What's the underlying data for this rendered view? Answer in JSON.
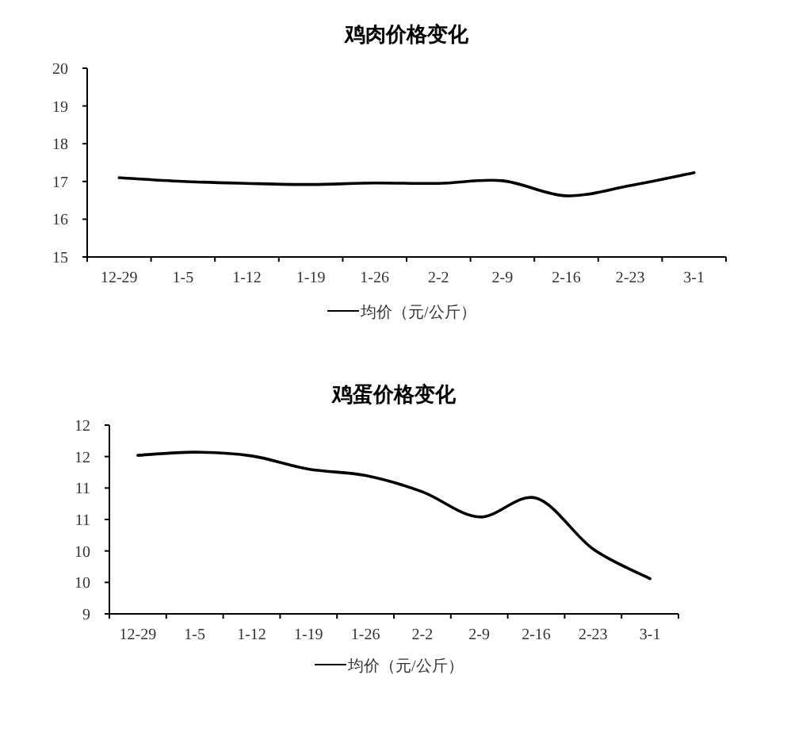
{
  "chart_data": [
    {
      "type": "line",
      "title": "鸡肉价格变化",
      "categories": [
        "12-29",
        "1-5",
        "1-12",
        "1-19",
        "1-26",
        "2-2",
        "2-9",
        "2-16",
        "2-23",
        "3-1"
      ],
      "series": [
        {
          "name": "均价（元/公斤）",
          "color": "#000000",
          "values": [
            17.1,
            17.0,
            16.95,
            16.92,
            16.96,
            16.95,
            17.02,
            16.62,
            16.89,
            17.23
          ]
        }
      ],
      "ylim": [
        15,
        20
      ],
      "yticks": [
        15,
        16,
        17,
        18,
        19,
        20
      ],
      "grid": false,
      "legend": "bottom",
      "marker": "none",
      "line_style": "solid"
    },
    {
      "type": "line",
      "title": "鸡蛋价格变化",
      "categories": [
        "12-29",
        "1-5",
        "1-12",
        "1-19",
        "1-26",
        "2-2",
        "2-9",
        "2-16",
        "2-23",
        "3-1"
      ],
      "series": [
        {
          "name": "均价（元/公斤）",
          "color": "#000000",
          "values": [
            11.52,
            11.57,
            11.51,
            11.3,
            11.2,
            10.94,
            10.54,
            10.84,
            10.03,
            9.56
          ]
        }
      ],
      "ylim": [
        9,
        12
      ],
      "yticks": [
        9,
        {
          "value": 9.5,
          "label": "10"
        },
        10,
        {
          "value": 10.5,
          "label": "11"
        },
        11,
        {
          "value": 11.5,
          "label": "12"
        },
        12
      ],
      "grid": false,
      "legend": "bottom",
      "marker": "none",
      "line_style": "solid"
    }
  ]
}
